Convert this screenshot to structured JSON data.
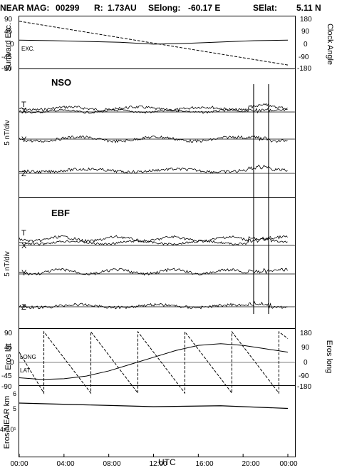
{
  "header": {
    "mission": "NEAR MAG:",
    "day": "00299",
    "r_label": "R:",
    "r_value": "1.73AU",
    "selong_label": "SElong:",
    "selong_value": "-60.17 E",
    "selat_label": "SElat:",
    "selat_value": "5.11 N"
  },
  "chart_data": [
    {
      "type": "line",
      "panel": "sunward-excursion-clock-angle",
      "ylabel": "Sunward Exc.",
      "ylabel_right": "Clock Angle",
      "ylim": [
        -90,
        90
      ],
      "ylim_right": [
        -180,
        180
      ],
      "yticks": [
        "90",
        "45",
        "0",
        "-45",
        "-90"
      ],
      "yticks_right": [
        "180",
        "90",
        "0",
        "-90",
        "-180"
      ],
      "annotation": "EXC.",
      "x_hours": [
        0,
        4,
        8,
        12,
        16,
        20,
        24
      ],
      "series": [
        {
          "name": "EXC.",
          "axis": "left",
          "style": "solid",
          "x": [
            0,
            3,
            6,
            9,
            12,
            15,
            18,
            21,
            24
          ],
          "y": [
            10,
            8,
            5,
            2,
            -5,
            -2,
            3,
            8,
            10
          ]
        },
        {
          "axis": "right",
          "style": "dashed",
          "x": [
            0,
            24
          ],
          "y": [
            160,
            -165
          ]
        }
      ]
    },
    {
      "type": "line",
      "panel": "nso-field",
      "title": "NSO",
      "ylabel": "5 nT/div",
      "components": [
        "T",
        "X",
        "Y",
        "Z"
      ],
      "x_hours": [
        0,
        4,
        8,
        12,
        16,
        20,
        24
      ],
      "vertical_markers_hours": [
        20.7,
        22.3
      ]
    },
    {
      "type": "line",
      "panel": "ebf-field",
      "title": "EBF",
      "ylabel": "5 nT/div",
      "components": [
        "T",
        "X",
        "Y",
        "Z"
      ],
      "x_hours": [
        0,
        4,
        8,
        12,
        16,
        20,
        24
      ],
      "vertical_markers_hours": [
        20.7,
        22.3
      ]
    },
    {
      "type": "line",
      "panel": "eros-lat-long",
      "ylabel": "Eros lat",
      "ylabel_right": "Eros long",
      "ylim": [
        -90,
        90
      ],
      "ylim_right": [
        -180,
        180
      ],
      "yticks": [
        "90",
        "45",
        "0",
        "-45",
        "-90"
      ],
      "yticks_right": [
        "180",
        "90",
        "0",
        "-90",
        "-180"
      ],
      "x_hours": [
        0,
        4,
        8,
        12,
        16,
        20,
        24
      ],
      "series": [
        {
          "name": "LAT",
          "axis": "left",
          "style": "solid",
          "x": [
            0,
            2,
            4,
            6,
            8,
            10,
            12,
            14,
            16,
            18,
            20,
            22,
            24
          ],
          "y": [
            -45,
            -50,
            -48,
            -40,
            -25,
            -5,
            15,
            35,
            50,
            55,
            50,
            40,
            30
          ]
        },
        {
          "name": "LONG",
          "axis": "right",
          "style": "dashed",
          "x": [
            0,
            2.2,
            2.2,
            6.4,
            6.4,
            10.6,
            10.6,
            14.8,
            14.8,
            19,
            19,
            23.2,
            23.2,
            24
          ],
          "y": [
            60,
            -180,
            180,
            -180,
            180,
            -180,
            180,
            -180,
            180,
            -180,
            180,
            -180,
            180,
            140
          ]
        }
      ]
    },
    {
      "type": "line",
      "panel": "eros-near-distance",
      "ylabel": "Eros-NEAR km",
      "scale": "log",
      "yticks": [
        "6",
        "5",
        "4x10¹"
      ],
      "x_hours": [
        0,
        4,
        8,
        12,
        16,
        20,
        24
      ],
      "series": [
        {
          "x": [
            0,
            6,
            12,
            18,
            24
          ],
          "y": [
            52,
            51,
            50,
            50.5,
            49
          ]
        }
      ]
    }
  ],
  "x_axis": {
    "ticks": [
      "00:00",
      "04:00",
      "08:00",
      "12:00",
      "16:00",
      "20:00",
      "00:00"
    ],
    "label": "UTC"
  }
}
